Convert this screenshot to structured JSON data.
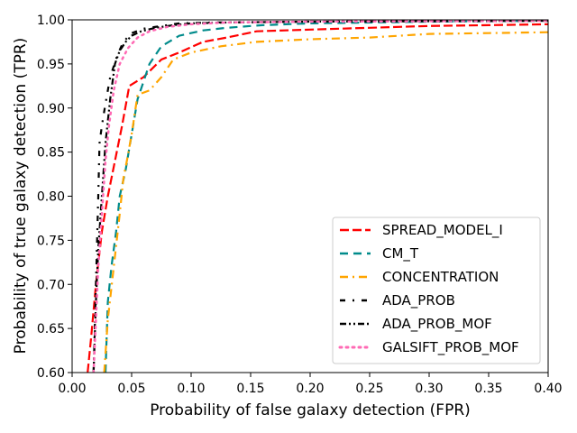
{
  "chart_data": {
    "type": "line",
    "title": "",
    "xlabel": "Probability of false galaxy detection (FPR)",
    "ylabel": "Probability of true galaxy detection (TPR)",
    "xlim": [
      0.0,
      0.4
    ],
    "ylim": [
      0.6,
      1.0
    ],
    "xticks": [
      "0.00",
      "0.05",
      "0.10",
      "0.15",
      "0.20",
      "0.25",
      "0.30",
      "0.35",
      "0.40"
    ],
    "yticks": [
      "0.60",
      "0.65",
      "0.70",
      "0.75",
      "0.80",
      "0.85",
      "0.90",
      "0.95",
      "1.00"
    ],
    "legend_position": "lower-right",
    "series": [
      {
        "name": "SPREAD_MODEL_I",
        "color": "#ff0000",
        "style": "long-dash",
        "x": [
          0.013,
          0.016,
          0.02,
          0.025,
          0.03,
          0.036,
          0.042,
          0.048,
          0.06,
          0.075,
          0.09,
          0.11,
          0.13,
          0.155,
          0.2,
          0.25,
          0.3,
          0.35,
          0.4
        ],
        "y": [
          0.6,
          0.64,
          0.7,
          0.76,
          0.8,
          0.84,
          0.88,
          0.925,
          0.935,
          0.955,
          0.963,
          0.975,
          0.98,
          0.987,
          0.989,
          0.991,
          0.993,
          0.994,
          0.995
        ]
      },
      {
        "name": "CM_T",
        "color": "#008b8b",
        "style": "dash",
        "x": [
          0.028,
          0.03,
          0.033,
          0.037,
          0.04,
          0.045,
          0.05,
          0.055,
          0.065,
          0.075,
          0.09,
          0.11,
          0.13,
          0.16,
          0.2,
          0.3,
          0.4
        ],
        "y": [
          0.6,
          0.68,
          0.72,
          0.76,
          0.8,
          0.83,
          0.87,
          0.91,
          0.95,
          0.97,
          0.982,
          0.988,
          0.991,
          0.994,
          0.996,
          0.998,
          0.999
        ]
      },
      {
        "name": "CONCENTRATION",
        "color": "#ffa500",
        "style": "dash-dot",
        "x": [
          0.027,
          0.03,
          0.035,
          0.04,
          0.043,
          0.046,
          0.05,
          0.055,
          0.065,
          0.075,
          0.085,
          0.1,
          0.125,
          0.155,
          0.2,
          0.25,
          0.3,
          0.35,
          0.4
        ],
        "y": [
          0.6,
          0.66,
          0.72,
          0.78,
          0.82,
          0.84,
          0.87,
          0.915,
          0.92,
          0.935,
          0.955,
          0.963,
          0.97,
          0.975,
          0.978,
          0.98,
          0.984,
          0.985,
          0.986
        ]
      },
      {
        "name": "ADA_PROB",
        "color": "#000000",
        "style": "dash-dot-sparse",
        "x": [
          0.018,
          0.02,
          0.022,
          0.023,
          0.025,
          0.028,
          0.032,
          0.038,
          0.043,
          0.05,
          0.06,
          0.075,
          0.09,
          0.12,
          0.2,
          0.4
        ],
        "y": [
          0.6,
          0.7,
          0.8,
          0.86,
          0.88,
          0.905,
          0.935,
          0.96,
          0.975,
          0.985,
          0.99,
          0.993,
          0.996,
          0.997,
          0.998,
          0.999
        ]
      },
      {
        "name": "ADA_PROB_MOF",
        "color": "#000000",
        "style": "dash-dot-dot",
        "x": [
          0.018,
          0.02,
          0.022,
          0.025,
          0.028,
          0.032,
          0.036,
          0.04,
          0.045,
          0.05,
          0.058,
          0.07,
          0.085,
          0.1,
          0.13,
          0.2,
          0.4
        ],
        "y": [
          0.6,
          0.68,
          0.74,
          0.8,
          0.86,
          0.91,
          0.95,
          0.965,
          0.975,
          0.982,
          0.987,
          0.991,
          0.994,
          0.996,
          0.997,
          0.998,
          0.999
        ]
      },
      {
        "name": "GALSIFT_PROB_MOF",
        "color": "#ff69b4",
        "style": "dotted",
        "x": [
          0.018,
          0.02,
          0.022,
          0.025,
          0.028,
          0.031,
          0.035,
          0.04,
          0.047,
          0.055,
          0.065,
          0.08,
          0.1,
          0.13,
          0.2,
          0.4
        ],
        "y": [
          0.6,
          0.66,
          0.72,
          0.78,
          0.84,
          0.88,
          0.92,
          0.95,
          0.968,
          0.98,
          0.987,
          0.992,
          0.995,
          0.997,
          0.998,
          0.999
        ]
      }
    ]
  }
}
